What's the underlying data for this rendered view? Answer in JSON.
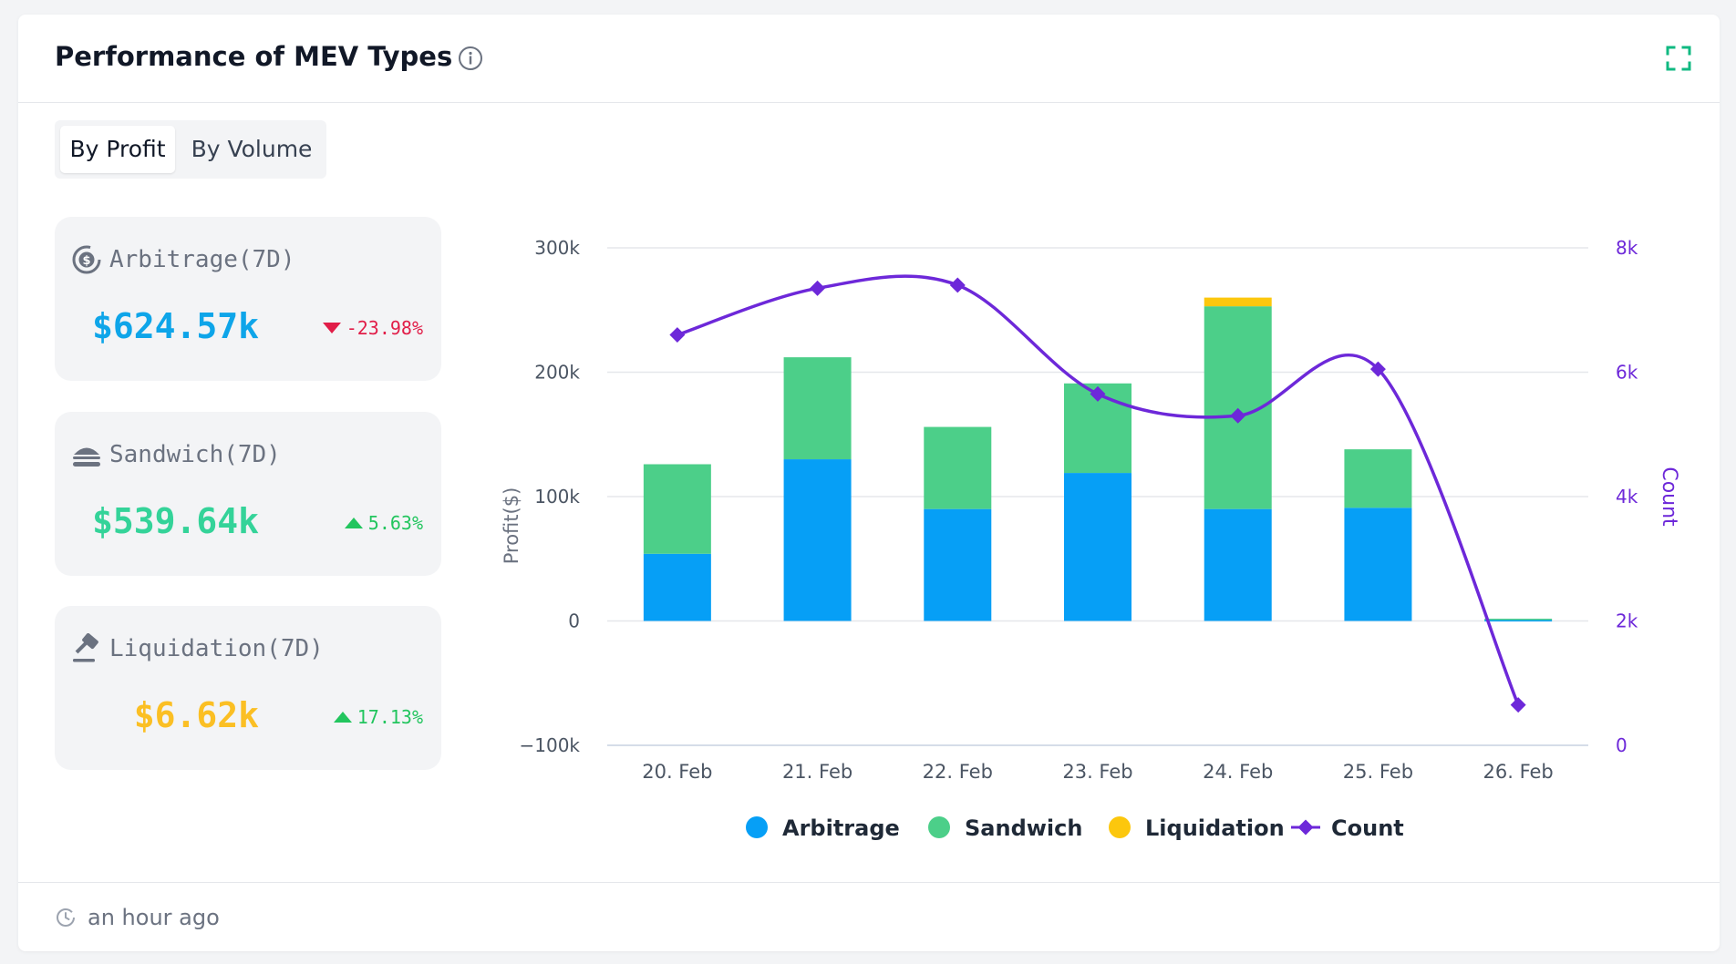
{
  "header": {
    "title": "Performance of MEV Types",
    "info_icon": "info-icon",
    "expand_icon": "expand-icon"
  },
  "tabs": [
    {
      "label": "By Profit",
      "active": true
    },
    {
      "label": "By Volume",
      "active": false
    }
  ],
  "stats": [
    {
      "label": "Arbitrage(7D)",
      "value": "$624.57k",
      "change": "-23.98%",
      "direction": "down",
      "color": "#0ea5e9",
      "icon": "arbitrage-icon"
    },
    {
      "label": "Sandwich(7D)",
      "value": "$539.64k",
      "change": "5.63%",
      "direction": "up",
      "color": "#34d399",
      "icon": "sandwich-icon"
    },
    {
      "label": "Liquidation(7D)",
      "value": "$6.62k",
      "change": "17.13%",
      "direction": "up",
      "color": "#fbbf24",
      "icon": "gavel-icon"
    }
  ],
  "colors": {
    "arbitrage": "#069ff6",
    "sandwich": "#4ccf89",
    "liquidation": "#fcc70d",
    "count": "#6d28d9",
    "down": "#e11d48",
    "up": "#22c55e"
  },
  "chart_data": {
    "type": "bar",
    "stacked": true,
    "categories": [
      "20. Feb",
      "21. Feb",
      "22. Feb",
      "23. Feb",
      "24. Feb",
      "25. Feb",
      "26. Feb"
    ],
    "series": [
      {
        "name": "Arbitrage",
        "axis": "left",
        "values": [
          54000,
          130000,
          90000,
          119000,
          90000,
          91000,
          700
        ]
      },
      {
        "name": "Sandwich",
        "axis": "left",
        "values": [
          72000,
          82000,
          66000,
          72000,
          163000,
          47000,
          1100
        ]
      },
      {
        "name": "Liquidation",
        "axis": "left",
        "values": [
          0,
          0,
          0,
          0,
          7000,
          0,
          0
        ]
      },
      {
        "name": "Count",
        "type": "line",
        "axis": "right",
        "values": [
          6600,
          7350,
          7400,
          5650,
          5300,
          6050,
          650
        ]
      }
    ],
    "ylabel": "Profit($)",
    "y2label": "Count",
    "ylim": [
      -100000,
      300000
    ],
    "y2lim": [
      0,
      8000
    ],
    "yticks": [
      "300k",
      "200k",
      "100k",
      "0",
      "−100k"
    ],
    "y2ticks": [
      "8k",
      "6k",
      "4k",
      "2k",
      "0"
    ],
    "legend_position": "bottom-center",
    "grid": true
  },
  "footer": {
    "clock_icon": "clock-icon",
    "updated": "an hour ago"
  }
}
